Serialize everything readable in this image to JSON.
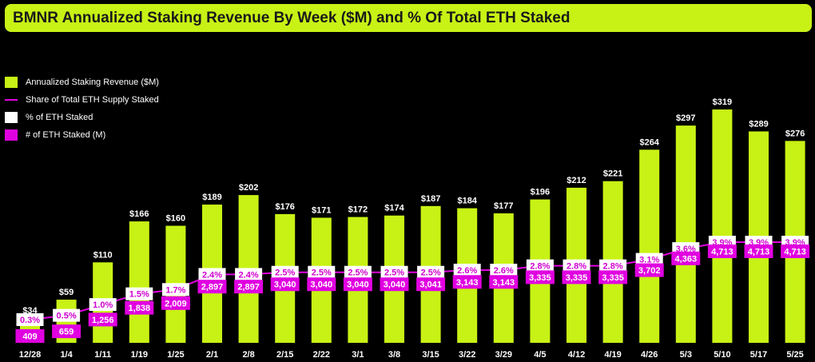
{
  "title": "BMNR Annualized Staking Revenue By Week ($M) and % Of Total ETH Staked",
  "colors": {
    "bar": "#c8f215",
    "line": "#e000e0",
    "pct_box": "#ffffff",
    "pct_text": "#d000d0",
    "count_box": "#e000e0",
    "count_text": "#ffffff",
    "axis_text": "#ffffff"
  },
  "legend": [
    {
      "label": "Annualized Staking Revenue ($M)",
      "swatch": "bar"
    },
    {
      "label": "Share of Total ETH Supply Staked",
      "swatch": "line"
    },
    {
      "label": "% of ETH Staked",
      "swatch": "pct_box"
    },
    {
      "label": "# of ETH Staked (M)",
      "swatch": "count_box"
    }
  ],
  "chart_data": {
    "type": "bar",
    "title": "BMNR Annualized Staking Revenue By Week ($M) and % Of Total ETH Staked",
    "categories": [
      "12/28",
      "1/4",
      "1/11",
      "1/19",
      "1/25",
      "2/1",
      "2/8",
      "2/15",
      "2/22",
      "3/1",
      "3/8",
      "3/15",
      "3/22",
      "3/29",
      "4/5",
      "4/12",
      "4/19",
      "4/26",
      "5/3",
      "5/10",
      "5/17",
      "5/25"
    ],
    "series": [
      {
        "name": "Annualized Staking Revenue ($M)",
        "type": "bar",
        "values": [
          34,
          59,
          110,
          166,
          160,
          189,
          202,
          176,
          171,
          172,
          174,
          187,
          184,
          177,
          196,
          212,
          221,
          264,
          297,
          319,
          289,
          276
        ],
        "labels": [
          "$34",
          "$59",
          "$110",
          "$166",
          "$160",
          "$189",
          "$202",
          "$176",
          "$171",
          "$172",
          "$174",
          "$187",
          "$184",
          "$177",
          "$196",
          "$212",
          "$221",
          "$264",
          "$297",
          "$319",
          "$289",
          "$276"
        ]
      },
      {
        "name": "Share of Total ETH Supply Staked",
        "type": "line",
        "values": [
          0.3,
          0.5,
          1.0,
          1.5,
          1.7,
          2.4,
          2.4,
          2.5,
          2.5,
          2.5,
          2.5,
          2.5,
          2.6,
          2.6,
          2.8,
          2.8,
          2.8,
          3.1,
          3.6,
          3.9,
          3.9,
          3.9
        ],
        "labels": [
          "0.3%",
          "0.5%",
          "1.0%",
          "1.5%",
          "1.7%",
          "2.4%",
          "2.4%",
          "2.5%",
          "2.5%",
          "2.5%",
          "2.5%",
          "2.5%",
          "2.6%",
          "2.6%",
          "2.8%",
          "2.8%",
          "2.8%",
          "3.1%",
          "3.6%",
          "3.9%",
          "3.9%",
          "3.9%"
        ]
      },
      {
        "name": "# of ETH Staked (M)",
        "type": "label",
        "values": [
          409,
          659,
          1256,
          1838,
          2009,
          2897,
          2897,
          3040,
          3040,
          3040,
          3040,
          3041,
          3143,
          3143,
          3335,
          3335,
          3335,
          3702,
          4363,
          4713,
          4713,
          4713
        ],
        "labels": [
          "409",
          "659",
          "1,256",
          "1,838",
          "2,009",
          "2,897",
          "2,897",
          "3,040",
          "3,040",
          "3,040",
          "3,040",
          "3,041",
          "3,143",
          "3,143",
          "3,335",
          "3,335",
          "3,335",
          "3,702",
          "4,363",
          "4,713",
          "4,713",
          "4,713"
        ]
      }
    ],
    "ylim": [
      0,
      319
    ],
    "grid": false,
    "legend_position": "top-left"
  }
}
